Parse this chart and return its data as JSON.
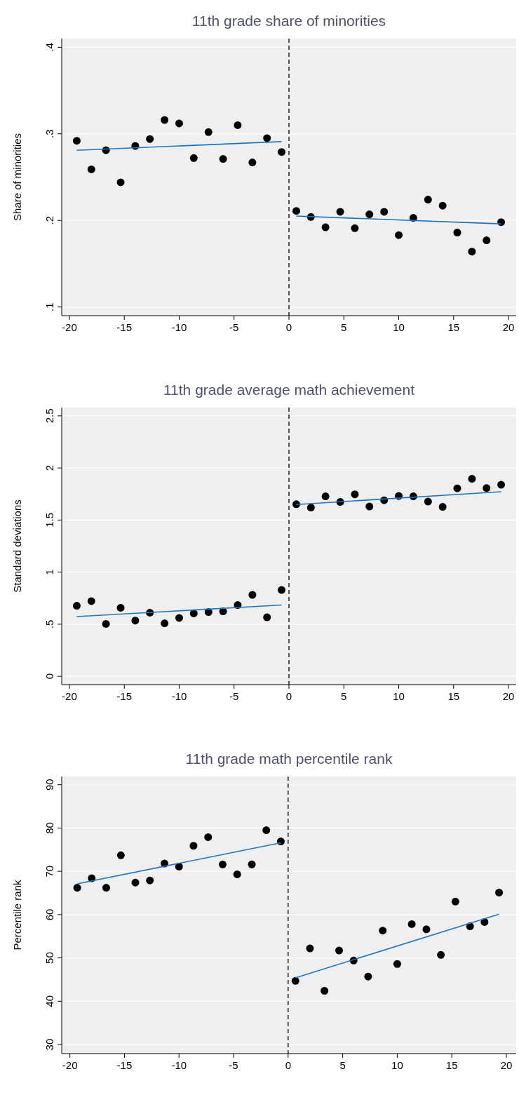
{
  "chart_data": [
    {
      "type": "scatter",
      "title": "11th grade share of minorities",
      "ylabel": "Share of minorities",
      "xlim": [
        -20.7,
        20.7
      ],
      "ylim": [
        0.09,
        0.41
      ],
      "xticks": [
        -20,
        -15,
        -10,
        -5,
        0,
        5,
        10,
        15,
        20
      ],
      "yticks": [
        {
          "value": 0.1,
          "label": ".1"
        },
        {
          "value": 0.2,
          "label": ".2"
        },
        {
          "value": 0.3,
          "label": ".3"
        },
        {
          "value": 0.4,
          "label": ".4"
        }
      ],
      "grid": "y",
      "ref_lines": [
        {
          "axis": "x",
          "value": 0,
          "color": "#000000",
          "line_style": "dashed"
        }
      ],
      "series": [
        {
          "marker": "circle",
          "color": "#000000",
          "x": [
            -19.33,
            -18,
            -16.67,
            -15.33,
            -14,
            -12.67,
            -11.33,
            -10,
            -8.67,
            -7.33,
            -6,
            -4.67,
            -3.33,
            -2,
            -0.67,
            0.67,
            2,
            3.33,
            4.67,
            6,
            7.33,
            8.67,
            10,
            11.33,
            12.67,
            14,
            15.33,
            16.67,
            18,
            19.33
          ],
          "values": [
            0.292,
            0.259,
            0.281,
            0.244,
            0.286,
            0.294,
            0.316,
            0.312,
            0.272,
            0.302,
            0.271,
            0.31,
            0.267,
            0.295,
            0.279,
            0.211,
            0.204,
            0.192,
            0.21,
            0.191,
            0.207,
            0.21,
            0.183,
            0.203,
            0.224,
            0.217,
            0.186,
            0.164,
            0.177,
            0.198
          ]
        },
        {
          "type": "line",
          "color": "#1a75c2",
          "x": [
            -19.33,
            -0.67
          ],
          "values": [
            0.281,
            0.291
          ]
        },
        {
          "type": "line",
          "color": "#1a75c2",
          "x": [
            0.67,
            19.33
          ],
          "values": [
            0.205,
            0.196
          ]
        }
      ]
    },
    {
      "type": "scatter",
      "title": "11th grade average math achievement",
      "ylabel": "Standard deviations",
      "xlim": [
        -20.7,
        20.7
      ],
      "ylim": [
        -0.08,
        2.58
      ],
      "xticks": [
        -20,
        -15,
        -10,
        -5,
        0,
        5,
        10,
        15,
        20
      ],
      "yticks": [
        0,
        {
          "value": 0.5,
          "label": ".5"
        },
        1,
        1.5,
        2,
        2.5
      ],
      "grid": "y",
      "ref_lines": [
        {
          "axis": "x",
          "value": 0,
          "color": "#000000",
          "line_style": "dashed"
        }
      ],
      "series": [
        {
          "marker": "circle",
          "color": "#000000",
          "x": [
            -19.33,
            -18,
            -16.67,
            -15.33,
            -14,
            -12.67,
            -11.33,
            -10,
            -8.67,
            -7.33,
            -6,
            -4.67,
            -3.33,
            -2,
            -0.67,
            0.67,
            2,
            3.33,
            4.67,
            6,
            7.33,
            8.67,
            10,
            11.33,
            12.67,
            14,
            15.33,
            16.67,
            18,
            19.33
          ],
          "values": [
            0.677,
            0.722,
            0.503,
            0.658,
            0.535,
            0.611,
            0.509,
            0.56,
            0.604,
            0.617,
            0.623,
            0.684,
            0.782,
            0.566,
            0.829,
            1.652,
            1.62,
            1.728,
            1.674,
            1.747,
            1.63,
            1.69,
            1.731,
            1.728,
            1.677,
            1.627,
            1.804,
            1.896,
            1.807,
            1.839
          ]
        },
        {
          "type": "line",
          "color": "#1a75c2",
          "x": [
            -19.33,
            -0.67
          ],
          "values": [
            0.573,
            0.684
          ]
        },
        {
          "type": "line",
          "color": "#1a75c2",
          "x": [
            0.67,
            19.33
          ],
          "values": [
            1.649,
            1.772
          ]
        }
      ]
    },
    {
      "type": "scatter",
      "title": "11th grade math percentile rank",
      "ylabel": "Percentile rank",
      "xlim": [
        -20.75,
        20.9
      ],
      "ylim": [
        27.9,
        91.9
      ],
      "xticks": [
        -20,
        -15,
        -10,
        -5,
        0,
        5,
        10,
        15,
        20
      ],
      "yticks": [
        30,
        40,
        50,
        60,
        70,
        80,
        90
      ],
      "grid": "y",
      "ref_lines": [
        {
          "axis": "x",
          "value": 0,
          "color": "#000000",
          "line_style": "dashed"
        }
      ],
      "series": [
        {
          "marker": "circle",
          "color": "#000000",
          "x": [
            -19.33,
            -18,
            -16.67,
            -15.33,
            -14,
            -12.67,
            -11.33,
            -10,
            -8.67,
            -7.33,
            -6,
            -4.67,
            -3.33,
            -2,
            -0.67,
            0.67,
            2,
            3.33,
            4.67,
            6,
            7.33,
            8.67,
            10,
            11.33,
            12.67,
            14,
            15.33,
            16.67,
            18,
            19.33
          ],
          "values": [
            66.2,
            68.4,
            66.2,
            73.7,
            67.4,
            67.9,
            71.8,
            71.1,
            75.9,
            77.9,
            71.6,
            69.3,
            71.6,
            79.5,
            76.9,
            44.7,
            52.2,
            42.4,
            51.7,
            49.4,
            45.7,
            56.3,
            48.6,
            57.8,
            56.6,
            50.7,
            63.0,
            57.3,
            58.3,
            65.1
          ]
        },
        {
          "type": "line",
          "color": "#1a75c2",
          "x": [
            -19.33,
            -0.67
          ],
          "values": [
            67.1,
            76.6
          ]
        },
        {
          "type": "line",
          "color": "#1a75c2",
          "x": [
            0.67,
            19.33
          ],
          "values": [
            45.4,
            60.1
          ]
        }
      ]
    }
  ]
}
